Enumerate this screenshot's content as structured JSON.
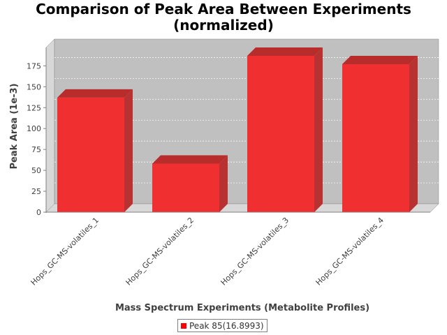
{
  "chart_data": {
    "type": "bar",
    "title_line1": "Comparison of Peak Area Between Experiments",
    "title_line2": "(normalized)",
    "xlabel": "Mass Spectrum Experiments (Metabolite Profiles)",
    "ylabel": "Peak Area (1e-3)",
    "categories": [
      "Hops_GC-MS-volatiles_1",
      "Hops_GC-MS-volatiles_2",
      "Hops_GC-MS-volatiles_3",
      "Hops_GC-MS-volatiles_4"
    ],
    "series": [
      {
        "name": "Peak 85(16.8993)",
        "values": [
          137,
          58,
          187,
          177
        ]
      }
    ],
    "ylim": [
      0,
      197
    ],
    "yticks": [
      0,
      25,
      50,
      75,
      100,
      125,
      150,
      175
    ],
    "grid": true,
    "legend_position": "bottom",
    "colors": {
      "bar_front": "#f03030",
      "bar_top": "#b82c2c",
      "bar_side": "#b83232",
      "plot_bg": "#c0c0c0",
      "wall": "#d8d8d8"
    }
  }
}
